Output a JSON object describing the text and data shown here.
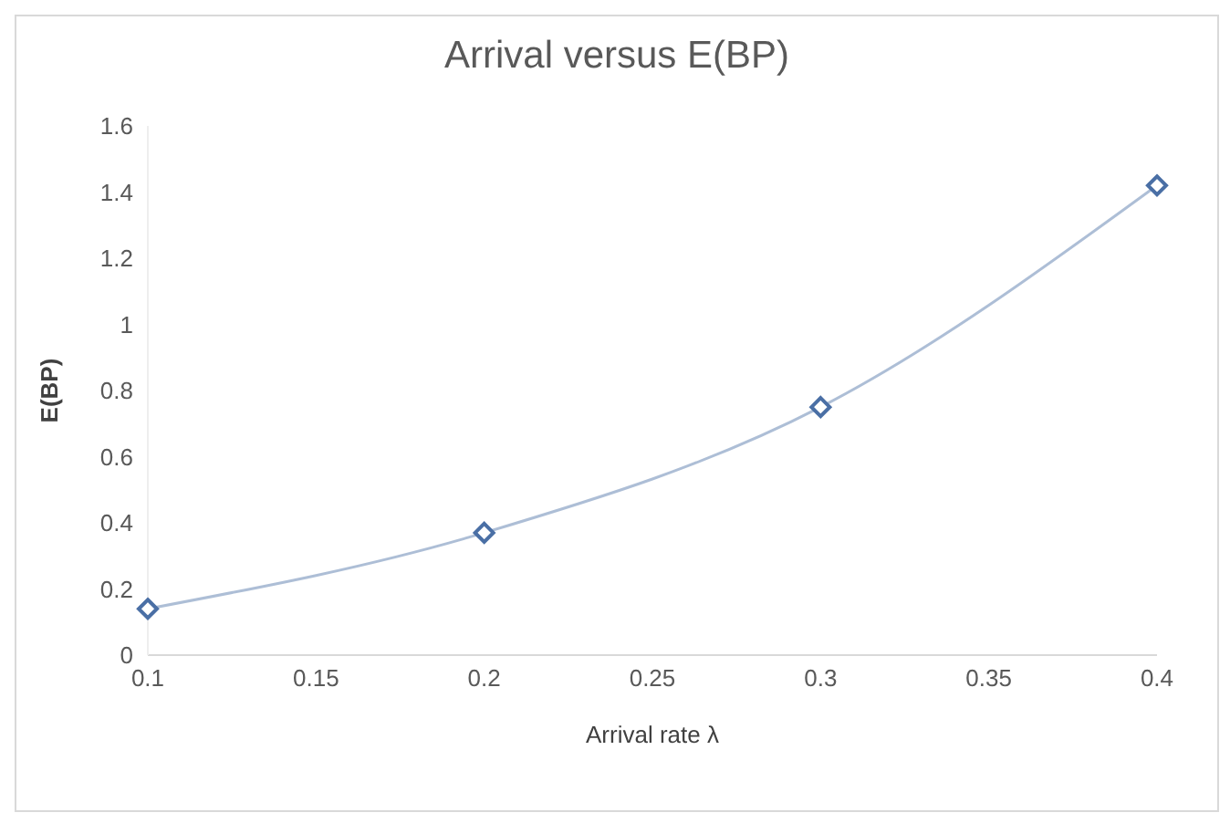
{
  "chart_data": {
    "type": "line",
    "title": "Arrival versus E(BP)",
    "xlabel": "Arrival rate λ",
    "ylabel": "E(BP)",
    "x": [
      0.1,
      0.2,
      0.3,
      0.4
    ],
    "series": [
      {
        "color": "#4a6fa5",
        "values": [
          0.14,
          0.37,
          0.75,
          1.42
        ]
      }
    ],
    "xlim": [
      0.1,
      0.4
    ],
    "xticks": [
      0.1,
      0.15,
      0.2,
      0.25,
      0.3,
      0.35,
      0.4
    ],
    "ylim": [
      0,
      1.6
    ],
    "yticks": [
      0,
      0.2,
      0.4,
      0.6,
      0.8,
      1,
      1.2,
      1.4,
      1.6
    ],
    "grid": false,
    "legend": false,
    "marker": "diamond",
    "line_style": "solid"
  }
}
